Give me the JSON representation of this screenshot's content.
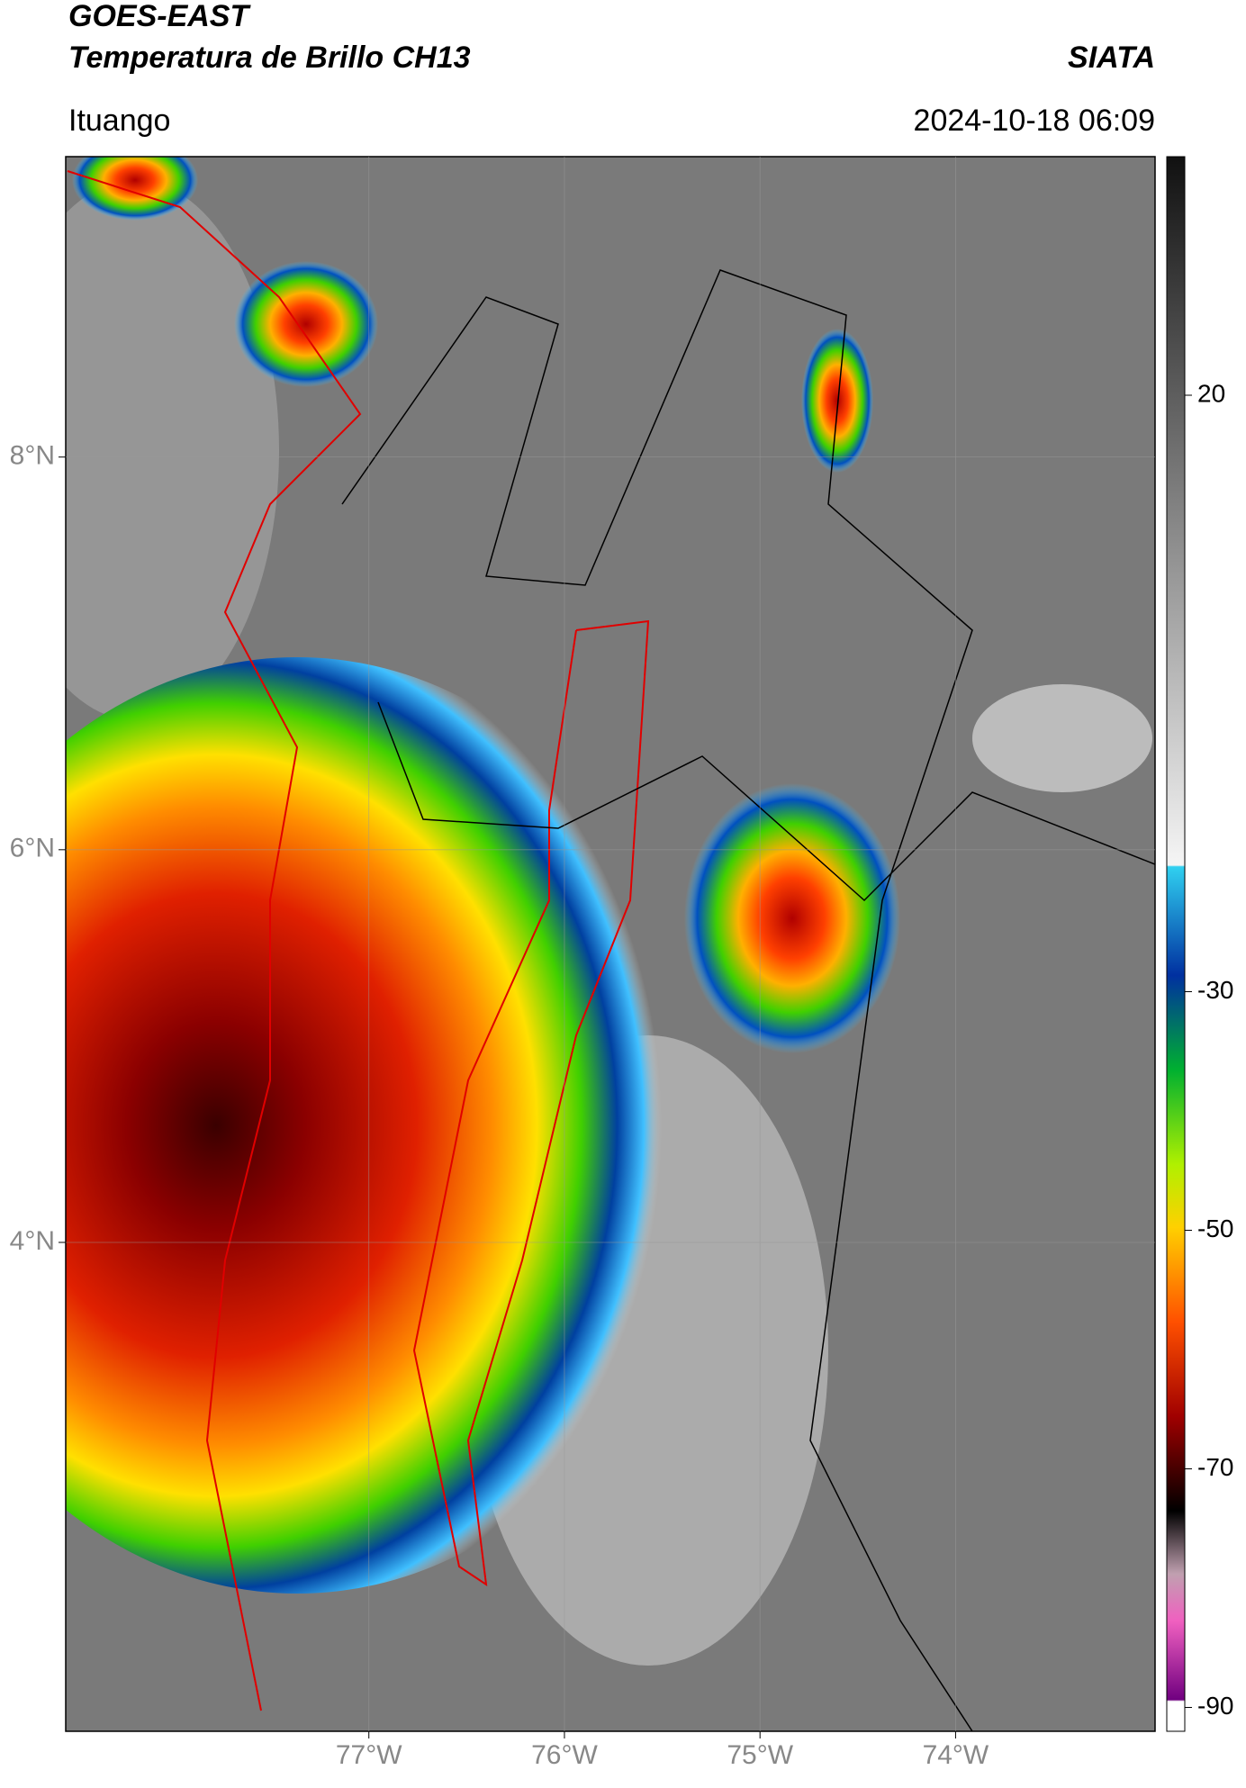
{
  "header": {
    "title": "GOES-EAST",
    "subtitle": "Temperatura de Brillo CH13",
    "organization": "SIATA",
    "location": "Ituango",
    "datetime": "2024-10-18 06:09"
  },
  "map": {
    "xlim": [
      -78.55,
      -72.98
    ],
    "ylim": [
      1.51,
      9.53
    ],
    "xticks": [
      {
        "value": -77,
        "label": "77°W"
      },
      {
        "value": -76,
        "label": "76°W"
      },
      {
        "value": -75,
        "label": "75°W"
      },
      {
        "value": -74,
        "label": "74°W"
      }
    ],
    "yticks": [
      {
        "value": 8,
        "label": "8°N"
      },
      {
        "value": 6,
        "label": "6°N"
      },
      {
        "value": 4,
        "label": "4°N"
      }
    ],
    "grid": true
  },
  "colorbar": {
    "lim": [
      40,
      -92
    ],
    "ticks": [
      20,
      -30,
      -50,
      -70,
      -90
    ]
  }
}
